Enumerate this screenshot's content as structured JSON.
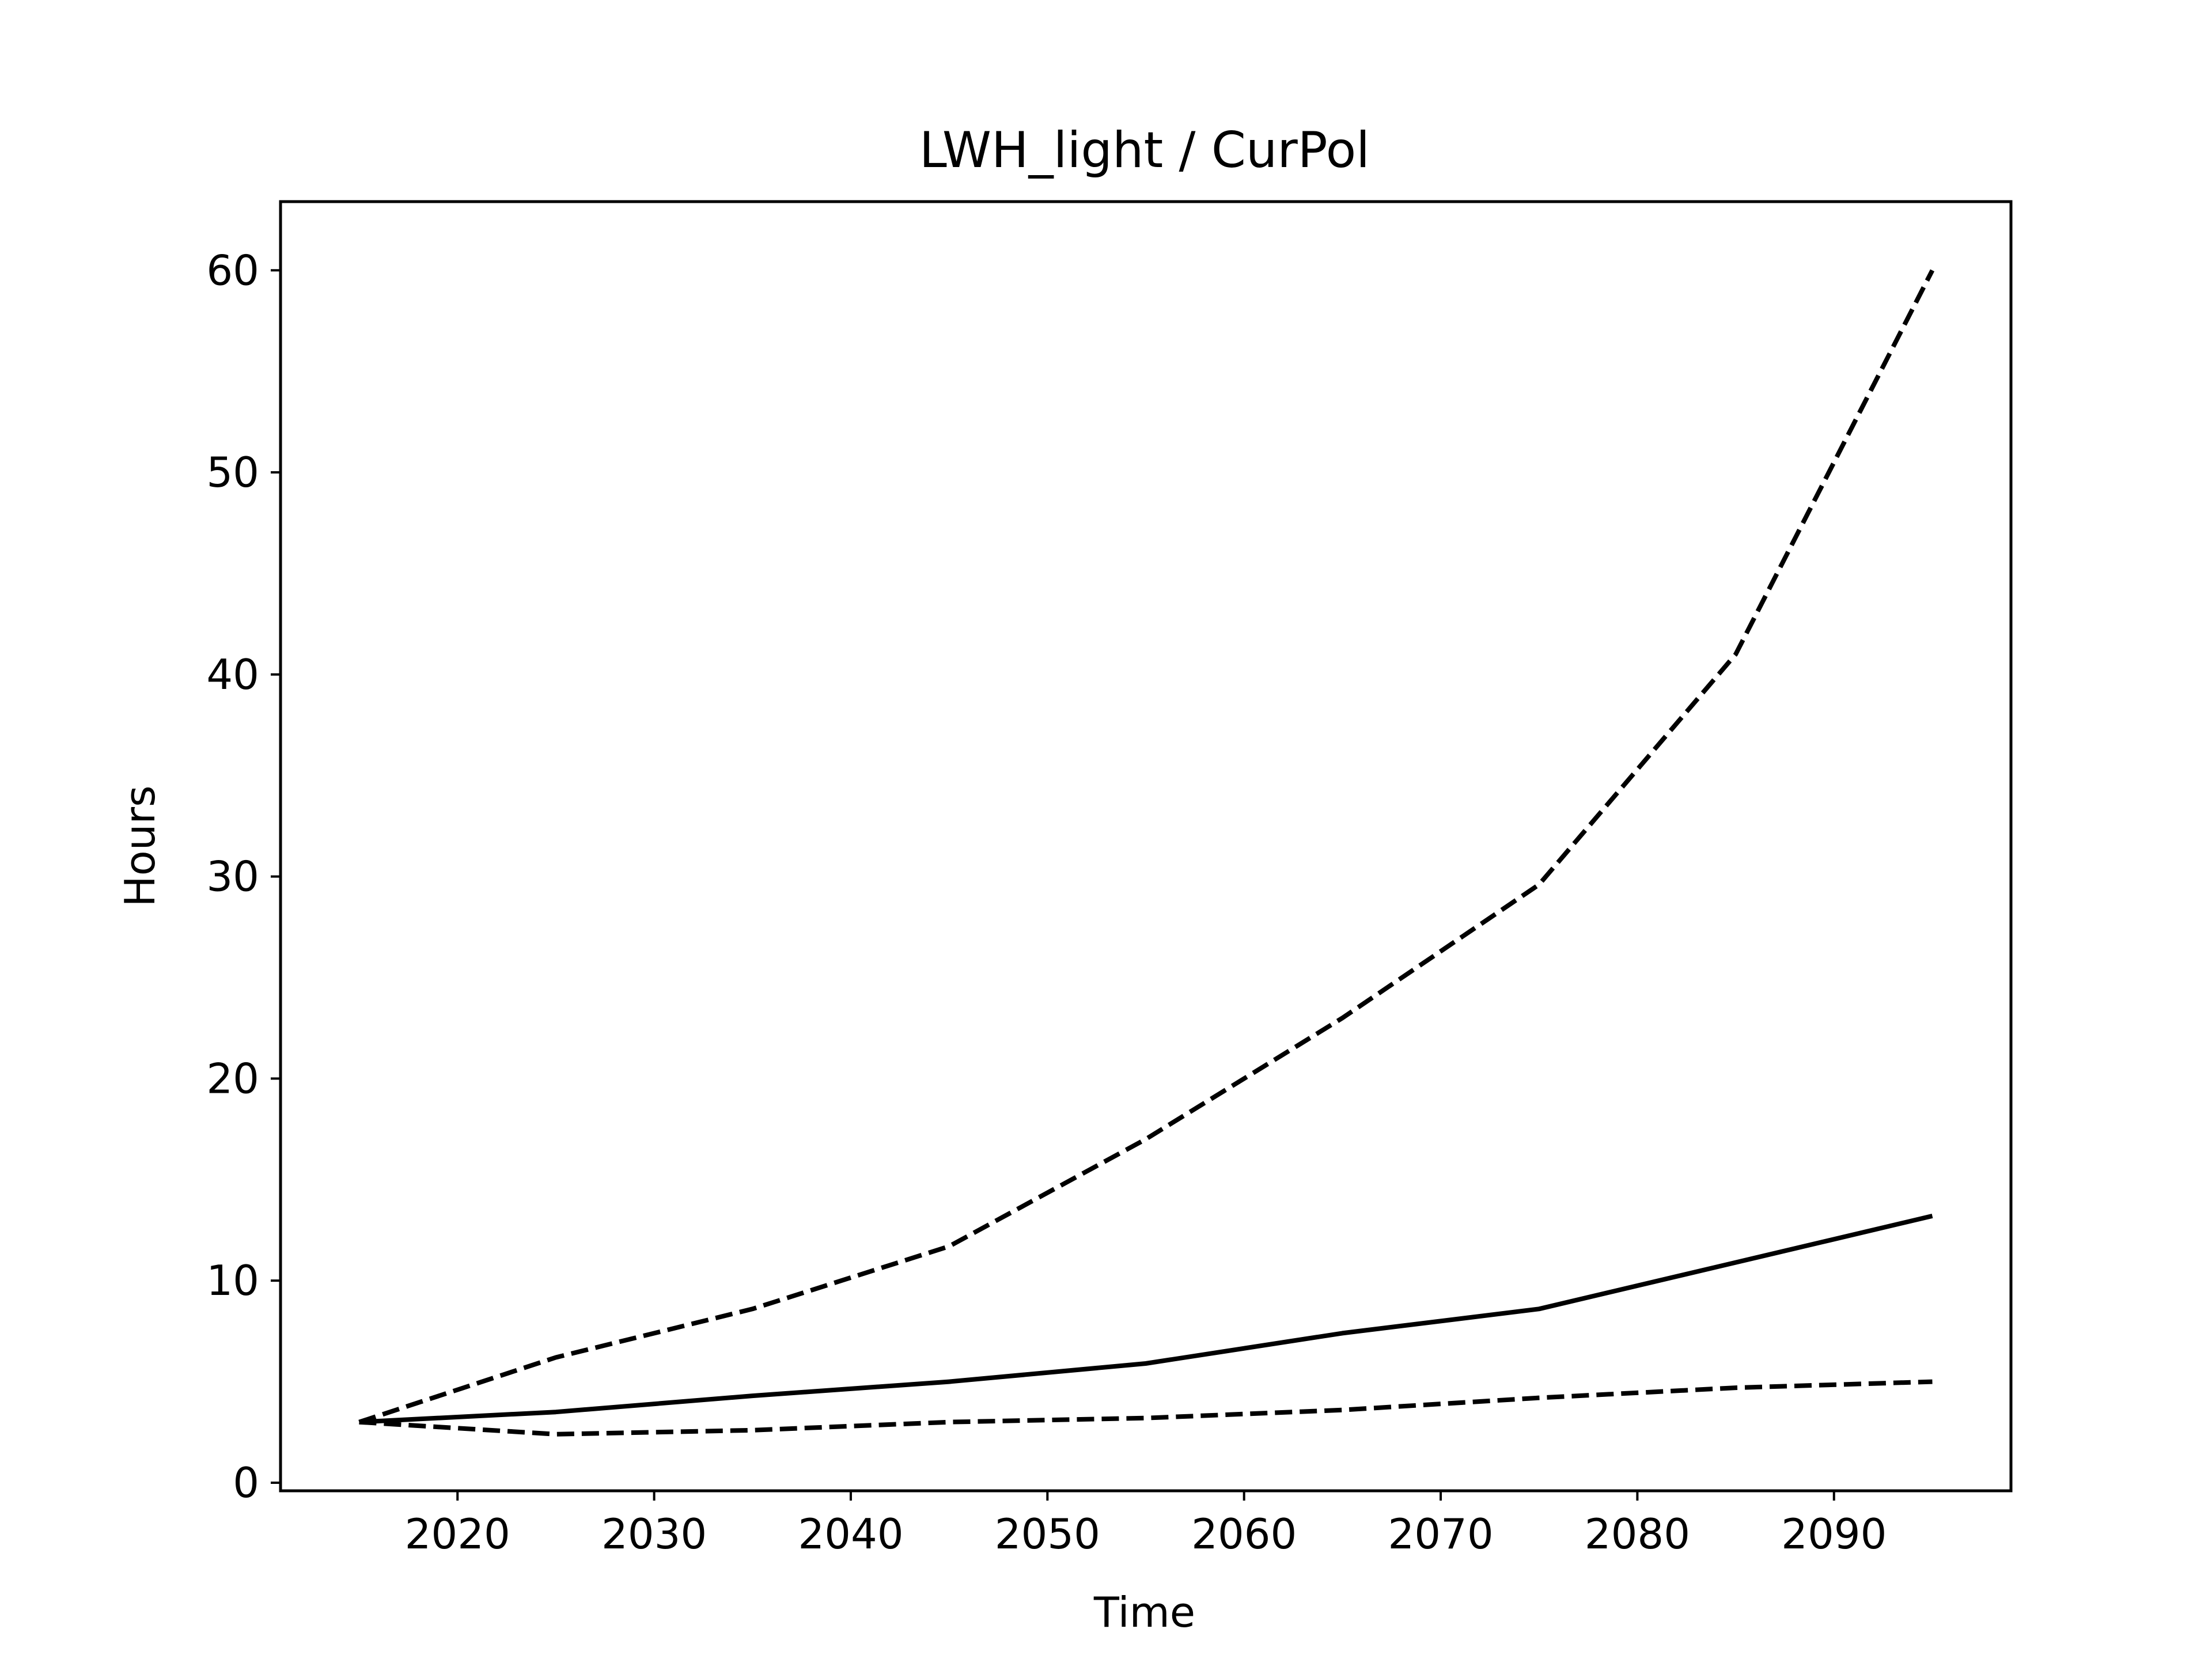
{
  "chart_data": {
    "type": "line",
    "title": "LWH_light / CurPol",
    "xlabel": "Time",
    "ylabel": "Hours",
    "xlim": [
      2011,
      2099
    ],
    "ylim": [
      -0.4,
      63.4
    ],
    "xticks": [
      2020,
      2030,
      2040,
      2050,
      2060,
      2070,
      2080,
      2090
    ],
    "yticks": [
      0,
      10,
      20,
      30,
      40,
      50,
      60
    ],
    "grid": false,
    "color": "#000000",
    "series": [
      {
        "style": "solid",
        "x": [
          2015,
          2025,
          2035,
          2045,
          2055,
          2065,
          2075,
          2085,
          2095
        ],
        "y": [
          3.0,
          3.5,
          4.3,
          5.0,
          5.9,
          7.4,
          8.6,
          10.9,
          13.2
        ]
      },
      {
        "style": "dashed",
        "x": [
          2015,
          2025,
          2035,
          2045,
          2055,
          2065,
          2075,
          2085,
          2095
        ],
        "y": [
          3.0,
          6.2,
          8.6,
          11.7,
          17.0,
          23.0,
          29.6,
          41.0,
          60.0
        ]
      },
      {
        "style": "dashed",
        "x": [
          2015,
          2025,
          2035,
          2045,
          2055,
          2065,
          2075,
          2085,
          2095
        ],
        "y": [
          3.0,
          2.4,
          2.6,
          3.0,
          3.2,
          3.6,
          4.2,
          4.7,
          5.0
        ]
      }
    ]
  }
}
